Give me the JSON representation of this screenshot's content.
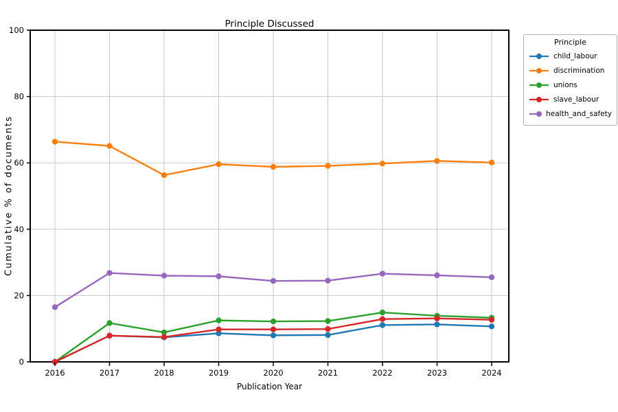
{
  "chart_data": {
    "type": "line",
    "title": "Principle Discussed",
    "xlabel": "Publication Year",
    "ylabel": "Cumulative % of documents",
    "categories": [
      "2016",
      "2017",
      "2018",
      "2019",
      "2020",
      "2021",
      "2022",
      "2023",
      "2024"
    ],
    "y_ticks": [
      0,
      20,
      40,
      60,
      80,
      100
    ],
    "ylim": [
      0,
      100
    ],
    "grid": true,
    "legend": {
      "title": "Principle",
      "position": "outside-upper-right"
    },
    "series": [
      {
        "name": "child_labour",
        "color": "#1f77b4",
        "values": [
          0.0,
          7.9,
          7.4,
          8.6,
          8.0,
          8.1,
          11.1,
          11.3,
          10.7
        ]
      },
      {
        "name": "discrimination",
        "color": "#ff7f0e",
        "values": [
          66.4,
          65.1,
          56.3,
          59.6,
          58.8,
          59.1,
          59.8,
          60.6,
          60.1
        ]
      },
      {
        "name": "unions",
        "color": "#2ca02c",
        "values": [
          0.0,
          11.7,
          8.9,
          12.5,
          12.2,
          12.3,
          14.9,
          13.9,
          13.3
        ]
      },
      {
        "name": "slave_labour",
        "color": "#d62728",
        "values": [
          0.0,
          7.9,
          7.5,
          9.8,
          9.8,
          9.9,
          12.9,
          13.1,
          12.7
        ]
      },
      {
        "name": "health_and_safety",
        "color": "#9467bd",
        "values": [
          16.5,
          26.8,
          26.0,
          25.8,
          24.4,
          24.5,
          26.6,
          26.1,
          25.5
        ]
      }
    ],
    "style": {
      "background": "#ffffff",
      "grid_color": "#c8c8c8",
      "frame_color": "#000000",
      "tick_color": "#000000",
      "legend_border_color": "#b0b0b0"
    }
  }
}
